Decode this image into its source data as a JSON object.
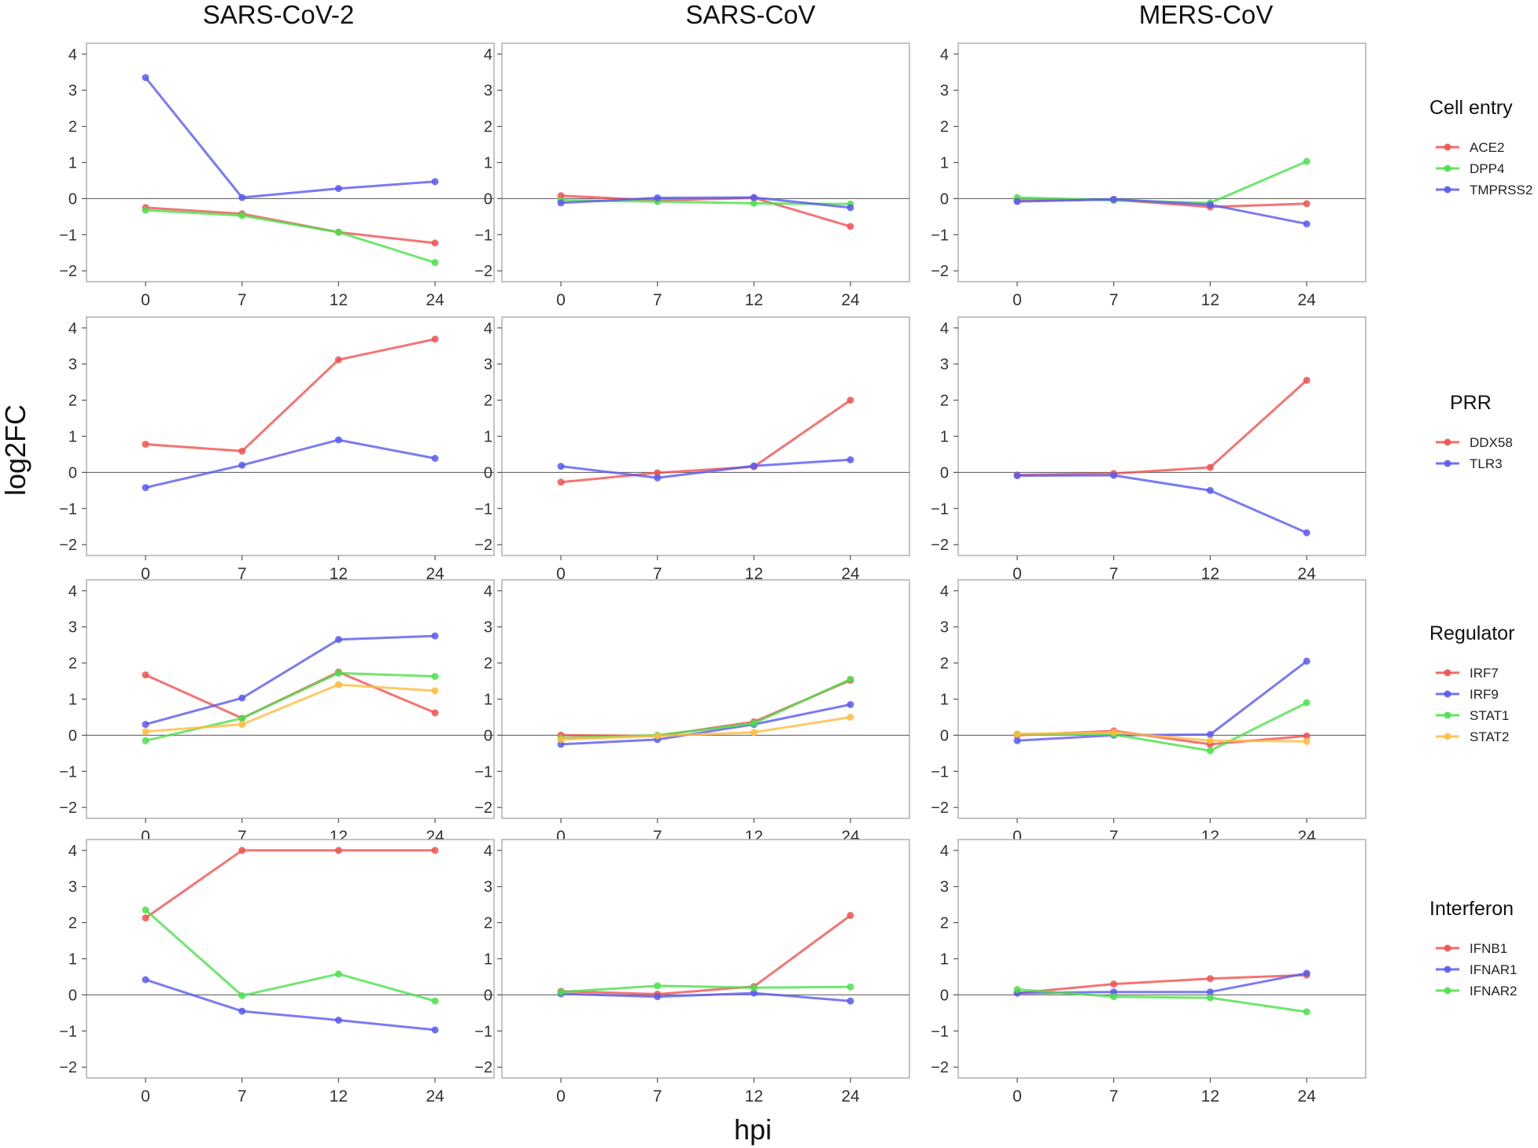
{
  "y_axis_label": "log2FC",
  "x_axis_label": "hpi",
  "column_titles": [
    "SARS-CoV-2",
    "SARS-CoV",
    "MERS-CoV"
  ],
  "legend_groups": [
    {
      "title": "Cell entry",
      "entries": [
        {
          "name": "ACE2",
          "color": "#ef5350"
        },
        {
          "name": "DPP4",
          "color": "#4ce04c"
        },
        {
          "name": "TMPRSS2",
          "color": "#5a5af0"
        }
      ]
    },
    {
      "title": "PRR",
      "entries": [
        {
          "name": "DDX58",
          "color": "#ef5350"
        },
        {
          "name": "TLR3",
          "color": "#5a5af0"
        }
      ]
    },
    {
      "title": "Regulator",
      "entries": [
        {
          "name": "IRF7",
          "color": "#ef5350"
        },
        {
          "name": "IRF9",
          "color": "#5a5af0"
        },
        {
          "name": "STAT1",
          "color": "#4ce04c"
        },
        {
          "name": "STAT2",
          "color": "#ffbb40"
        }
      ]
    },
    {
      "title": "Interferon",
      "entries": [
        {
          "name": "IFNB1",
          "color": "#ef5350"
        },
        {
          "name": "IFNAR1",
          "color": "#5a5af0"
        },
        {
          "name": "IFNAR2",
          "color": "#4ce04c"
        }
      ]
    }
  ],
  "chart_data": {
    "type": "line",
    "x": [
      0,
      7,
      12,
      24
    ],
    "x_tick_labels": [
      "0",
      "7",
      "12",
      "24"
    ],
    "y_ticks": [
      -2,
      -1,
      0,
      1,
      2,
      3,
      4
    ],
    "ylim": [
      -2.3,
      4.3
    ],
    "xlabel": "hpi",
    "ylabel": "log2FC",
    "panels": [
      {
        "row": "Cell entry",
        "virus": "SARS-CoV-2",
        "series": [
          {
            "name": "ACE2",
            "values": [
              -0.25,
              -0.42,
              -0.93,
              -1.23
            ]
          },
          {
            "name": "DPP4",
            "values": [
              -0.32,
              -0.47,
              -0.93,
              -1.77
            ]
          },
          {
            "name": "TMPRSS2",
            "values": [
              3.35,
              0.03,
              0.28,
              0.47
            ]
          }
        ]
      },
      {
        "row": "Cell entry",
        "virus": "SARS-CoV",
        "series": [
          {
            "name": "ACE2",
            "values": [
              0.08,
              -0.05,
              0.02,
              -0.77
            ]
          },
          {
            "name": "DPP4",
            "values": [
              -0.05,
              -0.08,
              -0.13,
              -0.15
            ]
          },
          {
            "name": "TMPRSS2",
            "values": [
              -0.12,
              0.02,
              0.03,
              -0.25
            ]
          }
        ]
      },
      {
        "row": "Cell entry",
        "virus": "MERS-CoV",
        "series": [
          {
            "name": "ACE2",
            "values": [
              -0.05,
              -0.03,
              -0.23,
              -0.14
            ]
          },
          {
            "name": "DPP4",
            "values": [
              0.03,
              -0.05,
              -0.12,
              1.03
            ]
          },
          {
            "name": "TMPRSS2",
            "values": [
              -0.08,
              -0.02,
              -0.17,
              -0.7
            ]
          }
        ]
      },
      {
        "row": "PRR",
        "virus": "SARS-CoV-2",
        "series": [
          {
            "name": "DDX58",
            "values": [
              0.78,
              0.59,
              3.12,
              3.69
            ]
          },
          {
            "name": "TLR3",
            "values": [
              -0.42,
              0.2,
              0.9,
              0.39
            ]
          }
        ]
      },
      {
        "row": "PRR",
        "virus": "SARS-CoV",
        "series": [
          {
            "name": "DDX58",
            "values": [
              -0.27,
              -0.01,
              0.16,
              2.0
            ]
          },
          {
            "name": "TLR3",
            "values": [
              0.17,
              -0.15,
              0.18,
              0.35
            ]
          }
        ]
      },
      {
        "row": "PRR",
        "virus": "MERS-CoV",
        "series": [
          {
            "name": "DDX58",
            "values": [
              -0.07,
              -0.03,
              0.14,
              2.55
            ]
          },
          {
            "name": "TLR3",
            "values": [
              -0.09,
              -0.08,
              -0.5,
              -1.67
            ]
          }
        ]
      },
      {
        "row": "Regulator",
        "virus": "SARS-CoV-2",
        "series": [
          {
            "name": "IRF7",
            "values": [
              1.67,
              0.47,
              1.75,
              0.62
            ]
          },
          {
            "name": "IRF9",
            "values": [
              0.3,
              1.03,
              2.65,
              2.75
            ]
          },
          {
            "name": "STAT1",
            "values": [
              -0.15,
              0.47,
              1.72,
              1.63
            ]
          },
          {
            "name": "STAT2",
            "values": [
              0.1,
              0.3,
              1.4,
              1.23
            ]
          }
        ]
      },
      {
        "row": "Regulator",
        "virus": "SARS-CoV",
        "series": [
          {
            "name": "IRF7",
            "values": [
              0.0,
              -0.02,
              0.37,
              1.52
            ]
          },
          {
            "name": "IRF9",
            "values": [
              -0.25,
              -0.12,
              0.3,
              0.85
            ]
          },
          {
            "name": "STAT1",
            "values": [
              -0.08,
              0.0,
              0.33,
              1.55
            ]
          },
          {
            "name": "STAT2",
            "values": [
              -0.12,
              -0.02,
              0.08,
              0.5
            ]
          }
        ]
      },
      {
        "row": "Regulator",
        "virus": "MERS-CoV",
        "series": [
          {
            "name": "IRF7",
            "values": [
              0.0,
              0.12,
              -0.25,
              -0.02
            ]
          },
          {
            "name": "IRF9",
            "values": [
              -0.15,
              0.0,
              0.02,
              2.05
            ]
          },
          {
            "name": "STAT1",
            "values": [
              0.03,
              0.02,
              -0.43,
              0.9
            ]
          },
          {
            "name": "STAT2",
            "values": [
              0.03,
              0.08,
              -0.15,
              -0.17
            ]
          }
        ]
      },
      {
        "row": "Interferon",
        "virus": "SARS-CoV-2",
        "series": [
          {
            "name": "IFNB1",
            "values": [
              2.13,
              4.0,
              4.0,
              4.0
            ]
          },
          {
            "name": "IFNAR1",
            "values": [
              0.42,
              -0.45,
              -0.7,
              -0.97
            ]
          },
          {
            "name": "IFNAR2",
            "values": [
              2.35,
              -0.02,
              0.58,
              -0.17
            ]
          }
        ]
      },
      {
        "row": "Interferon",
        "virus": "SARS-CoV",
        "series": [
          {
            "name": "IFNB1",
            "values": [
              0.1,
              0.02,
              0.23,
              2.2
            ]
          },
          {
            "name": "IFNAR1",
            "values": [
              0.03,
              -0.05,
              0.05,
              -0.17
            ]
          },
          {
            "name": "IFNAR2",
            "values": [
              0.08,
              0.25,
              0.2,
              0.22
            ]
          }
        ]
      },
      {
        "row": "Interferon",
        "virus": "MERS-CoV",
        "series": [
          {
            "name": "IFNB1",
            "values": [
              0.05,
              0.3,
              0.45,
              0.55
            ]
          },
          {
            "name": "IFNAR1",
            "values": [
              0.05,
              0.08,
              0.08,
              0.6
            ]
          },
          {
            "name": "IFNAR2",
            "values": [
              0.15,
              -0.05,
              -0.08,
              -0.47
            ]
          }
        ]
      }
    ]
  }
}
